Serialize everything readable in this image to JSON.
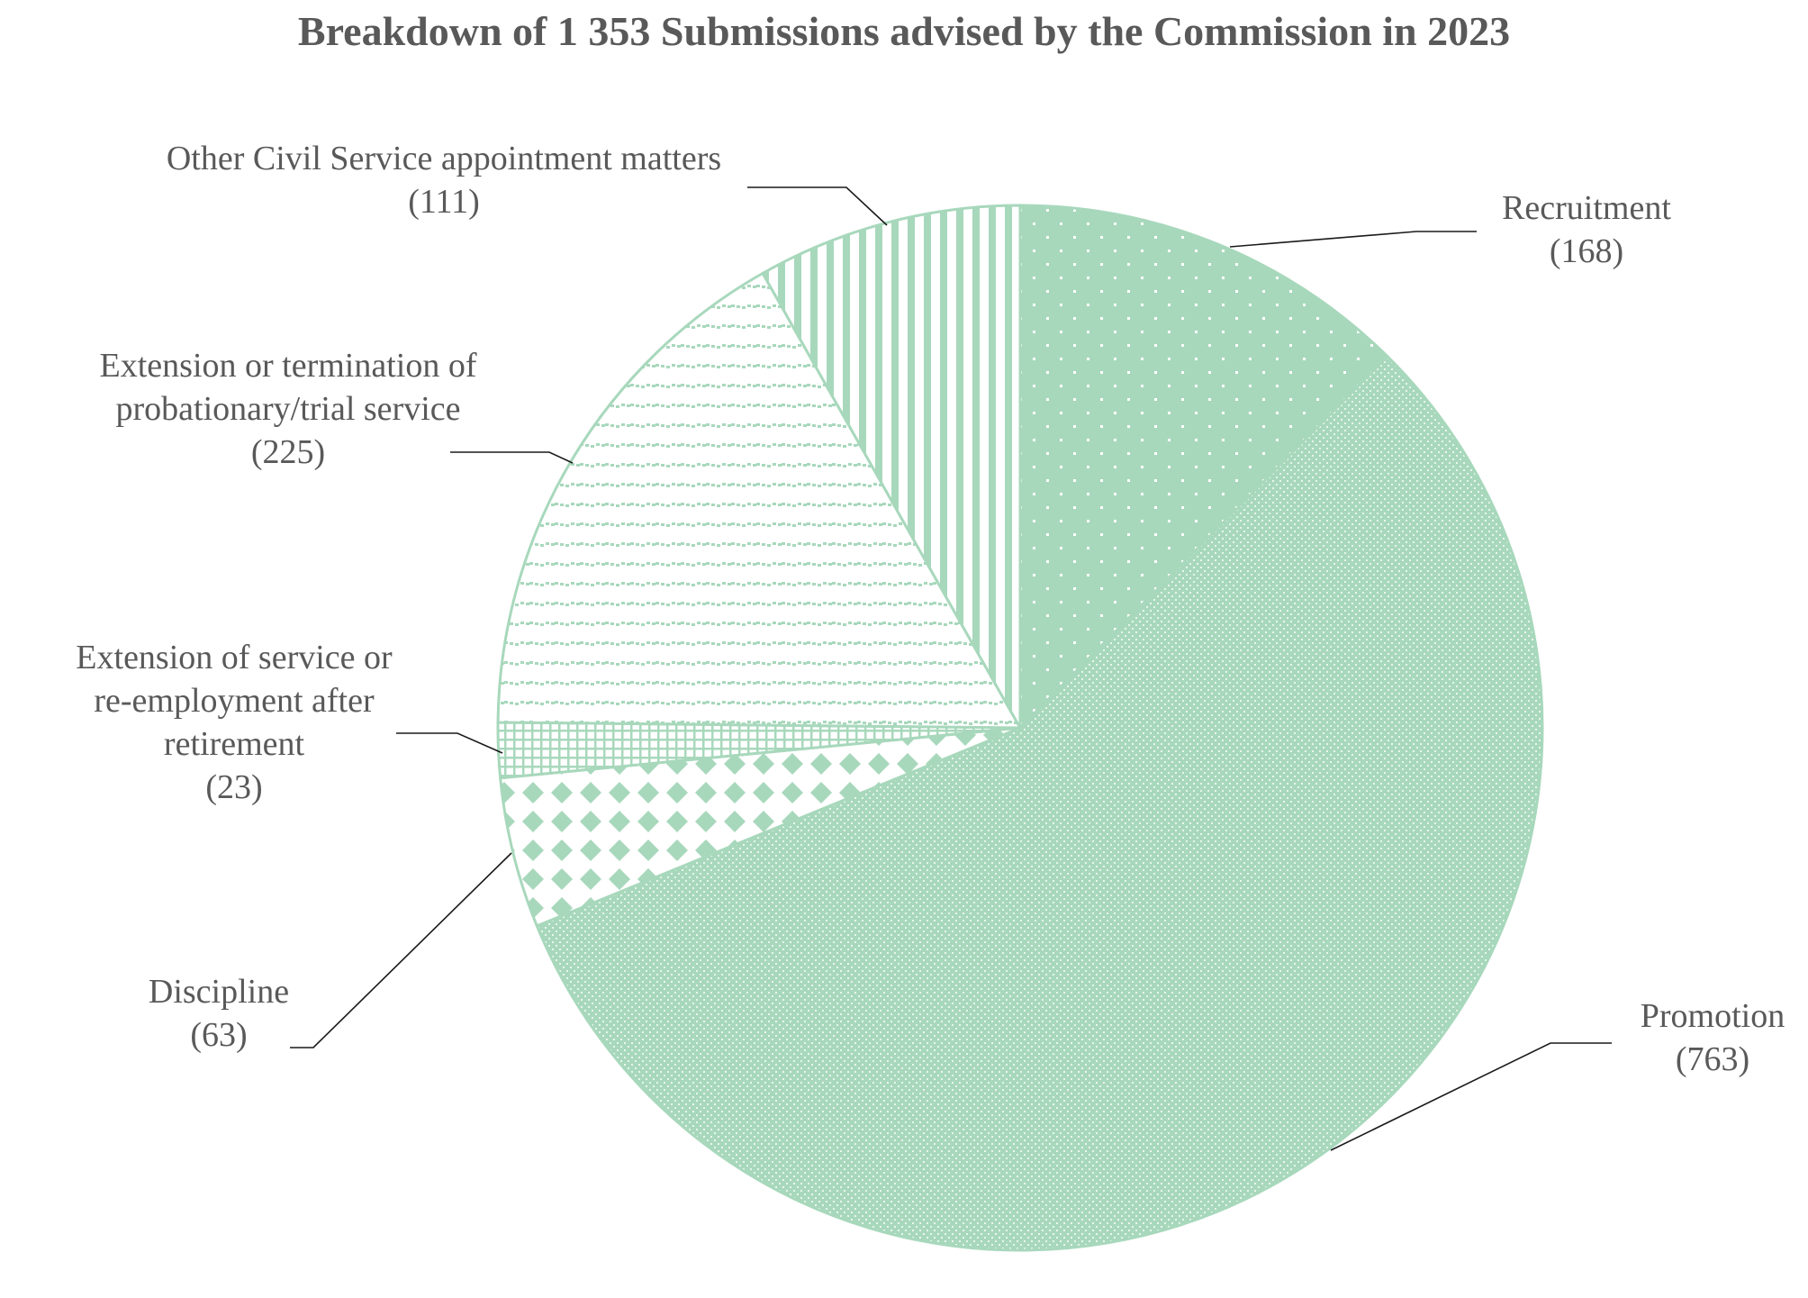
{
  "chart_data": {
    "type": "pie",
    "title": "Breakdown of 1 353 Submissions advised by the Commission in 2023",
    "total": 1353,
    "slices": [
      {
        "label_lines": [
          "Recruitment"
        ],
        "value": 168,
        "value_label": "(168)",
        "pattern": "small-dots"
      },
      {
        "label_lines": [
          "Promotion"
        ],
        "value": 763,
        "value_label": "(763)",
        "pattern": "dense-dots"
      },
      {
        "label_lines": [
          "Discipline"
        ],
        "value": 63,
        "value_label": "(63)",
        "pattern": "diamonds"
      },
      {
        "label_lines": [
          "Extension of service or",
          "re-employment after",
          "retirement"
        ],
        "value": 23,
        "value_label": "(23)",
        "pattern": "grid"
      },
      {
        "label_lines": [
          "Extension or termination of",
          "probationary/trial service"
        ],
        "value": 225,
        "value_label": "(225)",
        "pattern": "dashed-horizontal"
      },
      {
        "label_lines": [
          "Other Civil Service appointment matters"
        ],
        "value": 111,
        "value_label": "(111)",
        "pattern": "vertical-stripes"
      }
    ],
    "colors": {
      "fill": "#a8d8bc",
      "text": "#595959",
      "leader": "#1a1a1a",
      "background": "#ffffff"
    }
  }
}
